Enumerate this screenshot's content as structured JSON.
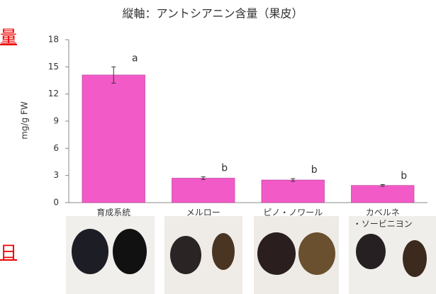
{
  "fragments": [
    "量",
    "日"
  ],
  "chart_data": {
    "type": "bar",
    "title": "縦軸：アントシアニン含量（果皮）",
    "y_label": "mg/g FW",
    "categories": [
      "育成系統",
      "メルロー",
      "ピノ・ノワール",
      "カベルネ\n・ソービニヨン"
    ],
    "values": [
      14.1,
      2.7,
      2.5,
      1.9
    ],
    "errors": [
      0.9,
      0.15,
      0.15,
      0.1
    ],
    "annotations": [
      "a",
      "b",
      "b",
      "b"
    ],
    "color": "#f25ac8",
    "ylim": [
      0,
      18
    ],
    "yticks": [
      0,
      3,
      6,
      9,
      12,
      15,
      18
    ],
    "grid": false
  }
}
